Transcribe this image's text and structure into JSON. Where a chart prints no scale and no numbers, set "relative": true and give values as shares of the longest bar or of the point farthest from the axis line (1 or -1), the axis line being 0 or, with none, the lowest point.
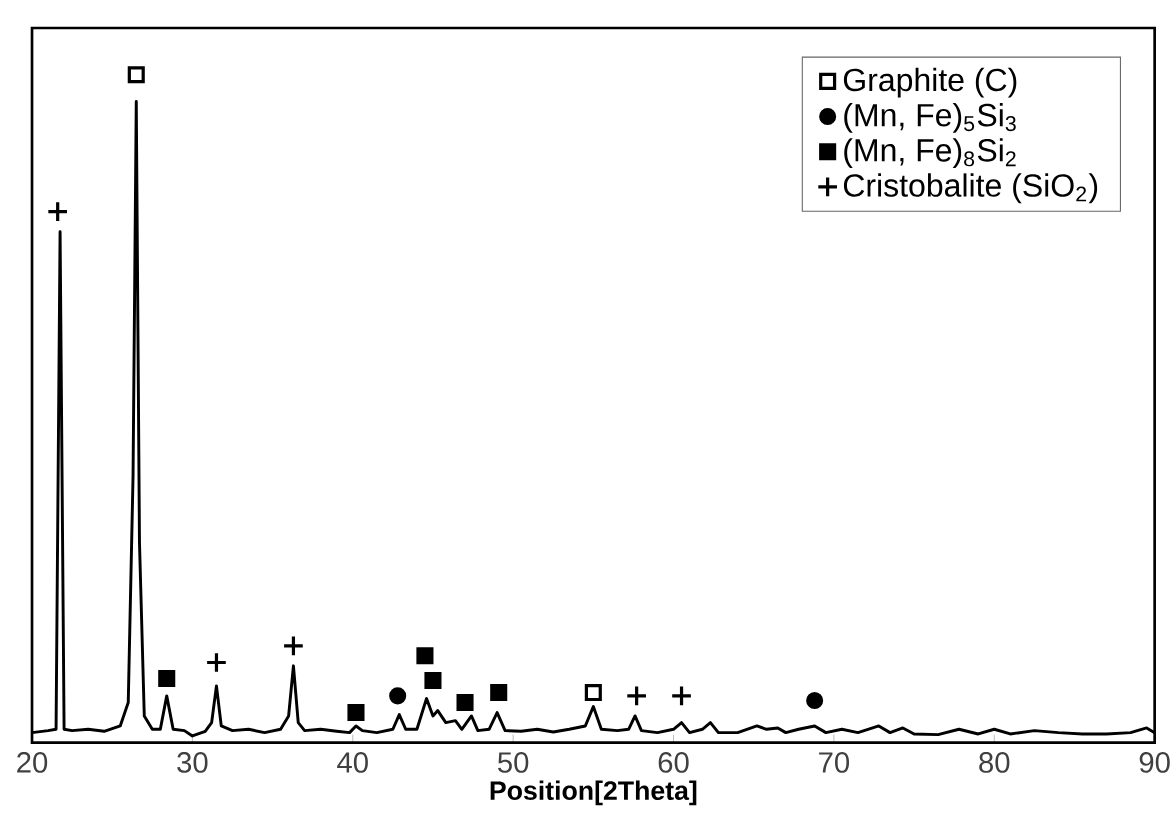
{
  "chart_data": {
    "type": "line",
    "relative": true,
    "xlabel": "**Position[2Theta]**",
    "xlim": [
      20,
      90
    ],
    "xticks": [
      20,
      30,
      40,
      50,
      60,
      70,
      80,
      90
    ],
    "grid": false,
    "legend": "top right",
    "series": [
      {
        "color": "#000000",
        "marker": "none",
        "x": [
          20.0,
          21.0,
          21.5,
          21.75,
          22.0,
          22.5,
          23.5,
          24.5,
          25.5,
          26.0,
          26.3,
          26.5,
          26.7,
          27.0,
          27.5,
          28.0,
          28.4,
          28.8,
          29.5,
          30.0,
          30.8,
          31.2,
          31.5,
          31.8,
          32.5,
          33.5,
          34.5,
          35.5,
          36.0,
          36.3,
          36.6,
          37.0,
          38.0,
          39.0,
          39.8,
          40.2,
          40.6,
          41.5,
          42.5,
          42.9,
          43.3,
          44.0,
          44.6,
          45.0,
          45.3,
          45.8,
          46.4,
          46.8,
          47.4,
          47.8,
          48.5,
          49.0,
          49.5,
          50.5,
          51.5,
          52.5,
          53.5,
          54.5,
          55.0,
          55.5,
          56.5,
          57.2,
          57.6,
          58.0,
          59.0,
          60.0,
          60.5,
          61.0,
          61.8,
          62.3,
          62.8,
          64.0,
          65.2,
          65.8,
          66.5,
          67.0,
          67.8,
          68.8,
          69.5,
          70.5,
          71.5,
          72.8,
          73.5,
          74.3,
          75.0,
          76.5,
          77.8,
          79.0,
          80.0,
          81.0,
          82.5,
          84.0,
          85.5,
          87.0,
          88.5,
          89.5,
          90.0
        ],
        "values": [
          0.015,
          0.018,
          0.02,
          0.765,
          0.02,
          0.018,
          0.02,
          0.017,
          0.025,
          0.06,
          0.4,
          0.96,
          0.3,
          0.04,
          0.02,
          0.02,
          0.07,
          0.02,
          0.018,
          0.01,
          0.017,
          0.03,
          0.085,
          0.025,
          0.018,
          0.02,
          0.015,
          0.02,
          0.04,
          0.115,
          0.03,
          0.018,
          0.02,
          0.017,
          0.015,
          0.025,
          0.018,
          0.015,
          0.02,
          0.042,
          0.02,
          0.02,
          0.066,
          0.04,
          0.048,
          0.03,
          0.033,
          0.02,
          0.04,
          0.018,
          0.02,
          0.045,
          0.018,
          0.017,
          0.02,
          0.016,
          0.02,
          0.025,
          0.054,
          0.02,
          0.018,
          0.02,
          0.04,
          0.018,
          0.015,
          0.02,
          0.03,
          0.015,
          0.02,
          0.03,
          0.015,
          0.015,
          0.025,
          0.02,
          0.022,
          0.015,
          0.02,
          0.025,
          0.015,
          0.02,
          0.015,
          0.025,
          0.015,
          0.022,
          0.013,
          0.012,
          0.02,
          0.013,
          0.02,
          0.013,
          0.018,
          0.015,
          0.013,
          0.013,
          0.015,
          0.022,
          0.015
        ]
      },
      {
        "type": "scatter",
        "name": "Graphite (C)",
        "color": "#ffffff",
        "marker": "square",
        "x": [
          26.5,
          55.0
        ],
        "values": [
          1.0,
          0.075
        ]
      },
      {
        "type": "scatter",
        "name": "(Mn, Fe)$_{5}$Si$_{3}$",
        "color": "#000000",
        "marker": "circle",
        "x": [
          42.8,
          68.8
        ],
        "values": [
          0.07,
          0.063
        ]
      },
      {
        "type": "scatter",
        "name": "(Mn, Fe)$_{8}$Si$_{2}$",
        "color": "#000000",
        "marker": "square",
        "x": [
          28.4,
          40.2,
          44.5,
          45.0,
          47.0,
          49.1
        ],
        "values": [
          0.096,
          0.045,
          0.13,
          0.093,
          0.06,
          0.075
        ]
      },
      {
        "type": "scatter",
        "name": "Cristobalite (SiO$_{2}$)",
        "color": "#000000",
        "marker": "cross",
        "x": [
          21.6,
          31.5,
          36.3,
          57.7,
          60.5
        ],
        "values": [
          0.795,
          0.12,
          0.145,
          0.07,
          0.07
        ]
      }
    ]
  }
}
